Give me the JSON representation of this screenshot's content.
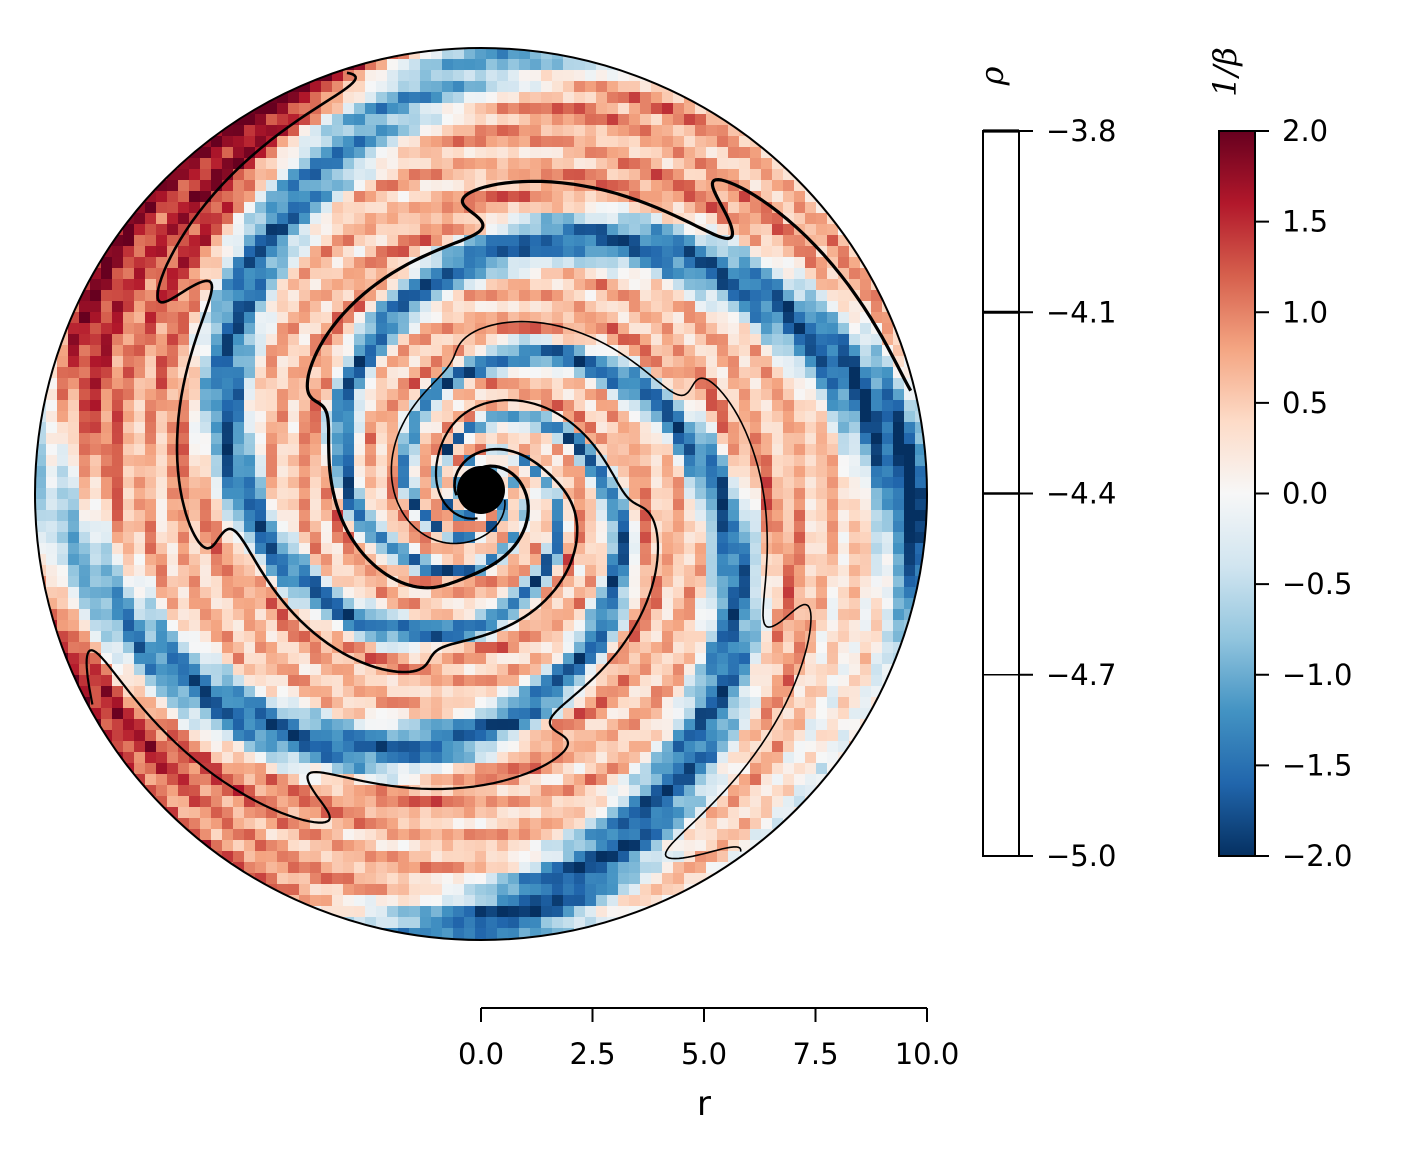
{
  "chart_data": {
    "type": "heatmap",
    "plot": "polar",
    "xlabel": "r",
    "r_axis": {
      "range": [
        0,
        10
      ],
      "ticks": [
        0.0,
        2.5,
        5.0,
        7.5,
        10.0
      ],
      "tick_labels": [
        "0.0",
        "2.5",
        "5.0",
        "7.5",
        "10.0"
      ]
    },
    "heatmap_colorbar": {
      "title": "1/β",
      "range": [
        -2.0,
        2.0
      ],
      "colormap": "RdBu_r",
      "colors": [
        "#053061",
        "#2166ac",
        "#4393c3",
        "#92c5de",
        "#d1e5f0",
        "#f7f7f7",
        "#fddbc7",
        "#f4a582",
        "#d6604d",
        "#b2182b",
        "#67001f"
      ],
      "ticks": [
        2.0,
        1.5,
        1.0,
        0.5,
        0.0,
        -0.5,
        -1.0,
        -1.5,
        -2.0
      ],
      "tick_labels": [
        "2.0",
        "1.5",
        "1.0",
        "0.5",
        "0.0",
        "−0.5",
        "−1.0",
        "−1.5",
        "−2.0"
      ]
    },
    "contour_colorbar": {
      "title": "ρ",
      "range": [
        -5.0,
        -3.8
      ],
      "levels": [
        -3.8,
        -4.1,
        -4.4,
        -4.7,
        -5.0
      ],
      "tick_labels": [
        "−3.8",
        "−4.1",
        "−4.4",
        "−4.7",
        "−5.0"
      ]
    },
    "spiral_pattern": {
      "arms": 4,
      "inner_sink_radius": 0.5,
      "grid": "off"
    }
  }
}
